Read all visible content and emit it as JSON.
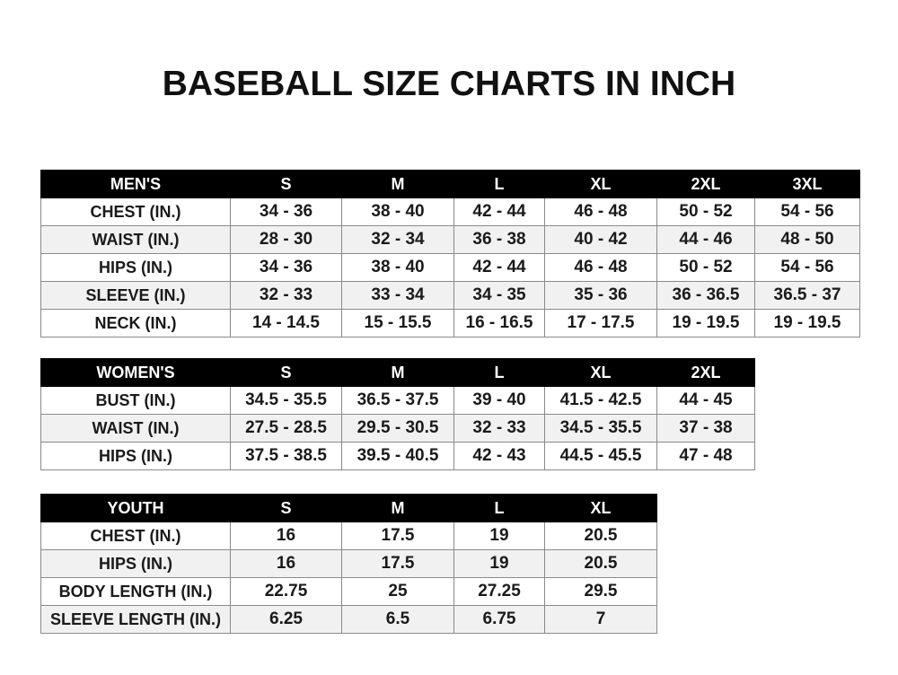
{
  "title": "BASEBALL SIZE CHARTS IN INCH",
  "tables": [
    {
      "headers": [
        "MEN'S",
        "S",
        "M",
        "L",
        "XL",
        "2XL",
        "3XL"
      ],
      "rows": [
        [
          "CHEST (IN.)",
          "34 - 36",
          "38 - 40",
          "42 - 44",
          "46 - 48",
          "50 - 52",
          "54 - 56"
        ],
        [
          "WAIST (IN.)",
          "28 - 30",
          "32 - 34",
          "36 - 38",
          "40 - 42",
          "44 - 46",
          "48 - 50"
        ],
        [
          "HIPS (IN.)",
          "34 - 36",
          "38 - 40",
          "42 - 44",
          "46 - 48",
          "50 - 52",
          "54 - 56"
        ],
        [
          "SLEEVE (IN.)",
          "32 - 33",
          "33 - 34",
          "34 - 35",
          "35 - 36",
          "36 - 36.5",
          "36.5 - 37"
        ],
        [
          "NECK (IN.)",
          "14 - 14.5",
          "15 - 15.5",
          "16 - 16.5",
          "17 - 17.5",
          "19 - 19.5",
          "19 - 19.5"
        ]
      ]
    },
    {
      "headers": [
        "WOMEN'S",
        "S",
        "M",
        "L",
        "XL",
        "2XL"
      ],
      "rows": [
        [
          "BUST (IN.)",
          "34.5 - 35.5",
          "36.5 - 37.5",
          "39 - 40",
          "41.5 - 42.5",
          "44 - 45"
        ],
        [
          "WAIST (IN.)",
          "27.5 - 28.5",
          "29.5 - 30.5",
          "32 - 33",
          "34.5 - 35.5",
          "37 - 38"
        ],
        [
          "HIPS (IN.)",
          "37.5 - 38.5",
          "39.5 - 40.5",
          "42 - 43",
          "44.5 - 45.5",
          "47 - 48"
        ]
      ]
    },
    {
      "headers": [
        "YOUTH",
        "S",
        "M",
        "L",
        "XL"
      ],
      "rows": [
        [
          "CHEST (IN.)",
          "16",
          "17.5",
          "19",
          "20.5"
        ],
        [
          "HIPS (IN.)",
          "16",
          "17.5",
          "19",
          "20.5"
        ],
        [
          "BODY LENGTH (IN.)",
          "22.75",
          "25",
          "27.25",
          "29.5"
        ],
        [
          "SLEEVE LENGTH (IN.)",
          "6.25",
          "6.5",
          "6.75",
          "7"
        ]
      ]
    }
  ]
}
